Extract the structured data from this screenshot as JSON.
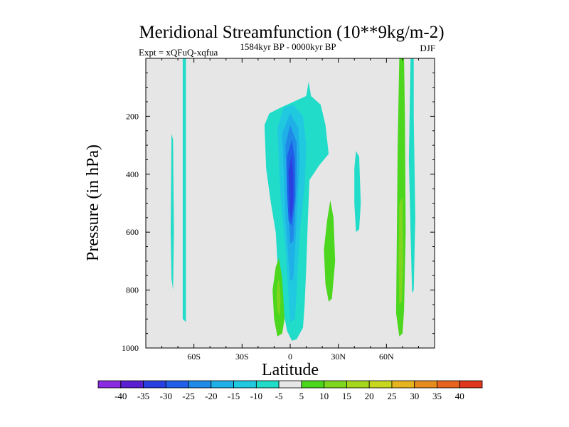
{
  "chart_data": {
    "type": "filled-contour",
    "title": "Meridional Streamfunction (10**9kg/m-2)",
    "left_string": "Expt = xQFuQ-xqfua",
    "center_string": "1584kyr BP - 0000kyr BP",
    "right_string": "DJF",
    "xlabel": "Latitude",
    "ylabel": "Pressure (in hPa)",
    "xlim": [
      -90,
      90
    ],
    "ylim": [
      0,
      1000
    ],
    "y_inverted": true,
    "x_ticks": [
      {
        "value": -60,
        "label": "60S"
      },
      {
        "value": -30,
        "label": "30S"
      },
      {
        "value": 0,
        "label": "0"
      },
      {
        "value": 30,
        "label": "30N"
      },
      {
        "value": 60,
        "label": "60N"
      }
    ],
    "y_ticks": [
      {
        "value": 200,
        "label": "200"
      },
      {
        "value": 400,
        "label": "400"
      },
      {
        "value": 600,
        "label": "600"
      },
      {
        "value": 800,
        "label": "800"
      },
      {
        "value": 1000,
        "label": "1000"
      }
    ],
    "background_color": "#e6e6e6",
    "colorbar": {
      "labels": [
        "-40",
        "-35",
        "-30",
        "-25",
        "-20",
        "-15",
        "-10",
        "-5",
        "5",
        "10",
        "15",
        "20",
        "25",
        "30",
        "35",
        "40"
      ],
      "colors": [
        "#8a2be2",
        "#5a1fd0",
        "#2a3fe0",
        "#2060e8",
        "#1f8ae8",
        "#20b0e8",
        "#20c8e0",
        "#20dcc8",
        "#e6e6e6",
        "#4cd61e",
        "#7ed61e",
        "#a6d61e",
        "#c8d61e",
        "#e6b41e",
        "#e68c1e",
        "#e6641e",
        "#e0361e"
      ]
    },
    "regions": [
      {
        "level": "-5",
        "color": "#20dcc8",
        "points": [
          [
            -67,
            0
          ],
          [
            -65,
            0
          ],
          [
            -65,
            910
          ],
          [
            -67,
            900
          ]
        ]
      },
      {
        "level": "-5",
        "color": "#20dcc8",
        "points": [
          [
            -74,
            260
          ],
          [
            -73,
            280
          ],
          [
            -72.5,
            600
          ],
          [
            -73,
            800
          ],
          [
            -74,
            760
          ],
          [
            -74.5,
            600
          ]
        ]
      },
      {
        "level": "-5",
        "color": "#20dcc8",
        "points": [
          [
            -16,
            230
          ],
          [
            -13,
            190
          ],
          [
            -6,
            170
          ],
          [
            2,
            150
          ],
          [
            10,
            130
          ],
          [
            11.5,
            80
          ],
          [
            13,
            130
          ],
          [
            19,
            160
          ],
          [
            22,
            230
          ],
          [
            24,
            330
          ],
          [
            18,
            370
          ],
          [
            12,
            420
          ],
          [
            11,
            560
          ],
          [
            10,
            720
          ],
          [
            9,
            850
          ],
          [
            8,
            930
          ],
          [
            4,
            970
          ],
          [
            1,
            975
          ],
          [
            -2,
            940
          ],
          [
            -6,
            820
          ],
          [
            -8,
            700
          ],
          [
            -9,
            600
          ],
          [
            -12,
            500
          ],
          [
            -15,
            380
          ]
        ]
      },
      {
        "level": "-10",
        "color": "#20c8e0",
        "points": [
          [
            -8,
            240
          ],
          [
            -4,
            170
          ],
          [
            2,
            160
          ],
          [
            8,
            200
          ],
          [
            10,
            300
          ],
          [
            9,
            440
          ],
          [
            6,
            600
          ],
          [
            3,
            900
          ],
          [
            0,
            910
          ],
          [
            -3,
            650
          ],
          [
            -6,
            480
          ]
        ]
      },
      {
        "level": "-15",
        "color": "#20b0e8",
        "points": [
          [
            -5,
            260
          ],
          [
            0,
            190
          ],
          [
            5,
            240
          ],
          [
            6,
            350
          ],
          [
            4,
            560
          ],
          [
            2,
            760
          ],
          [
            0,
            770
          ],
          [
            -3,
            550
          ],
          [
            -4,
            400
          ]
        ]
      },
      {
        "level": "-20",
        "color": "#1f8ae8",
        "points": [
          [
            -3,
            300
          ],
          [
            0,
            230
          ],
          [
            4,
            290
          ],
          [
            4,
            430
          ],
          [
            2,
            630
          ],
          [
            0,
            640
          ],
          [
            -2,
            450
          ]
        ]
      },
      {
        "level": "-25",
        "color": "#2060e8",
        "points": [
          [
            -2,
            340
          ],
          [
            1,
            280
          ],
          [
            3,
            350
          ],
          [
            3,
            480
          ],
          [
            1,
            580
          ],
          [
            -1,
            560
          ],
          [
            -2,
            460
          ]
        ]
      },
      {
        "level": "-30",
        "color": "#2a3fe0",
        "points": [
          [
            -1,
            390
          ],
          [
            1,
            330
          ],
          [
            2,
            410
          ],
          [
            2,
            500
          ],
          [
            0.5,
            560
          ],
          [
            -0.5,
            520
          ]
        ]
      },
      {
        "level": "-5",
        "color": "#20dcc8",
        "points": [
          [
            41,
            320
          ],
          [
            43,
            340
          ],
          [
            44,
            500
          ],
          [
            43,
            590
          ],
          [
            41,
            600
          ],
          [
            40,
            500
          ],
          [
            40,
            380
          ]
        ]
      },
      {
        "level": "-5",
        "color": "#20dcc8",
        "points": [
          [
            75,
            0
          ],
          [
            77,
            0
          ],
          [
            77,
            200
          ],
          [
            78,
            550
          ],
          [
            77,
            800
          ],
          [
            76,
            810
          ],
          [
            75,
            600
          ],
          [
            74,
            350
          ]
        ]
      },
      {
        "level": "10",
        "color": "#4cd61e",
        "points": [
          [
            -9,
            720
          ],
          [
            -7,
            690
          ],
          [
            -5,
            760
          ],
          [
            -3.5,
            900
          ],
          [
            -5,
            950
          ],
          [
            -8,
            960
          ],
          [
            -10,
            900
          ],
          [
            -11,
            800
          ]
        ]
      },
      {
        "level": "15",
        "color": "#7ed61e",
        "points": [
          [
            -8,
            780
          ],
          [
            -7,
            760
          ],
          [
            -6,
            830
          ],
          [
            -6.5,
            890
          ],
          [
            -8,
            870
          ],
          [
            -8.5,
            820
          ]
        ]
      },
      {
        "level": "10",
        "color": "#4cd61e",
        "points": [
          [
            25,
            490
          ],
          [
            27,
            550
          ],
          [
            28,
            700
          ],
          [
            26,
            830
          ],
          [
            24,
            840
          ],
          [
            22,
            780
          ],
          [
            21,
            660
          ],
          [
            23,
            560
          ]
        ]
      },
      {
        "level": "10",
        "color": "#4cd61e",
        "points": [
          [
            68,
            0
          ],
          [
            71,
            0
          ],
          [
            71.5,
            200
          ],
          [
            72,
            600
          ],
          [
            71,
            870
          ],
          [
            70,
            950
          ],
          [
            68,
            960
          ],
          [
            66,
            880
          ],
          [
            66.5,
            600
          ],
          [
            67,
            300
          ]
        ]
      },
      {
        "level": "15",
        "color": "#7ed61e",
        "points": [
          [
            68,
            500
          ],
          [
            70,
            480
          ],
          [
            70.5,
            700
          ],
          [
            69.5,
            840
          ],
          [
            68,
            850
          ],
          [
            67.5,
            700
          ]
        ]
      }
    ]
  }
}
